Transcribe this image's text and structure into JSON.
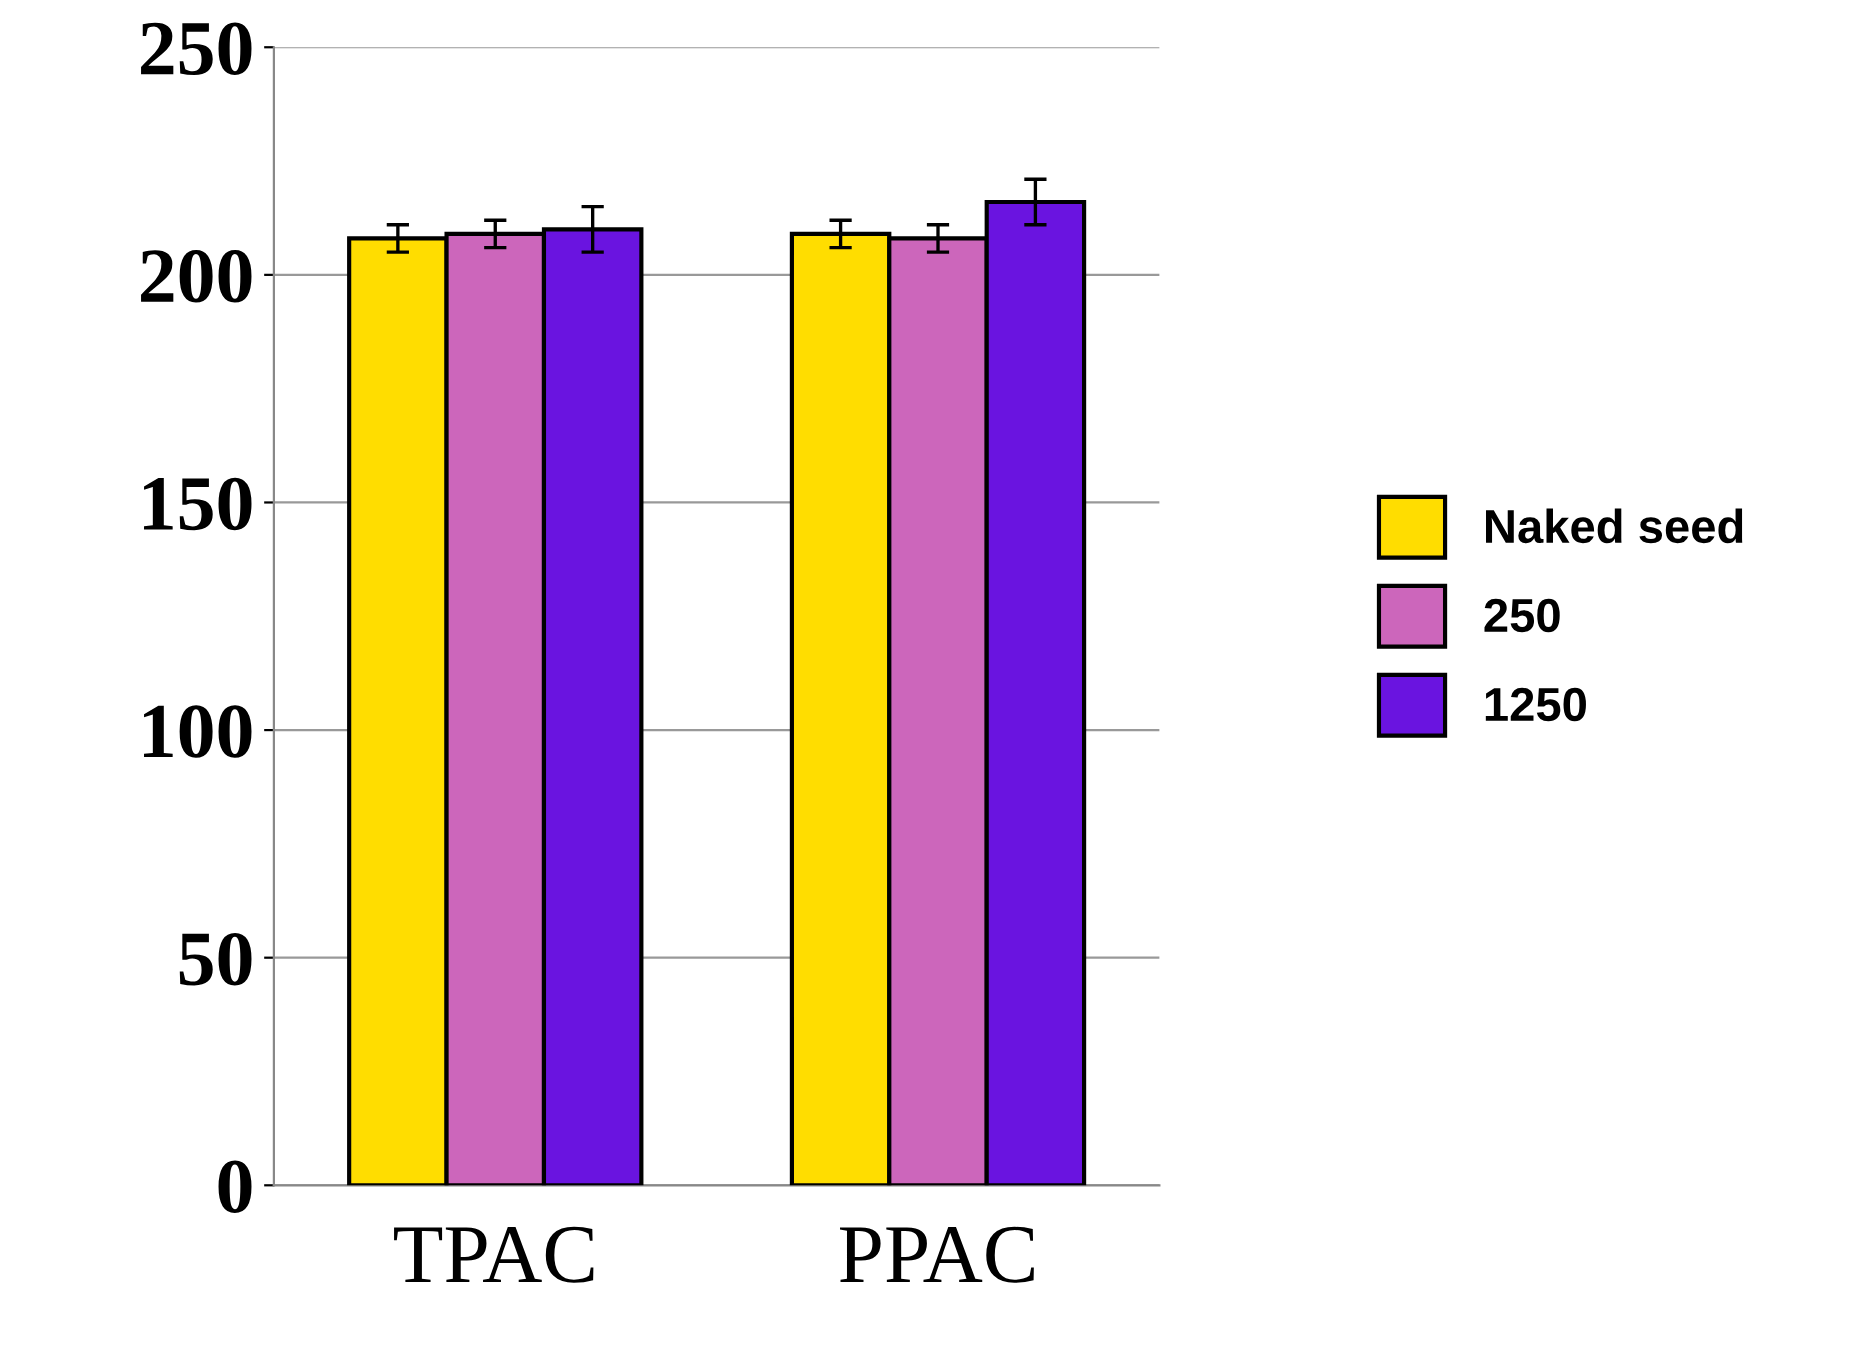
{
  "chart_data": {
    "type": "bar",
    "categories": [
      "TPAC",
      "PPAC"
    ],
    "series": [
      {
        "name": "Naked seed",
        "color": "#ffdd00",
        "values": [
          208,
          209
        ],
        "errors": [
          3,
          3
        ]
      },
      {
        "name": "250",
        "color": "#cc66bb",
        "values": [
          209,
          208
        ],
        "errors": [
          3,
          3
        ]
      },
      {
        "name": "1250",
        "color": "#6a14e0",
        "values": [
          210,
          216
        ],
        "errors": [
          5,
          5
        ]
      }
    ],
    "ylim": [
      0,
      250
    ],
    "yticks": [
      0,
      50,
      100,
      150,
      200,
      250
    ],
    "grid": "y",
    "legend": "right"
  }
}
